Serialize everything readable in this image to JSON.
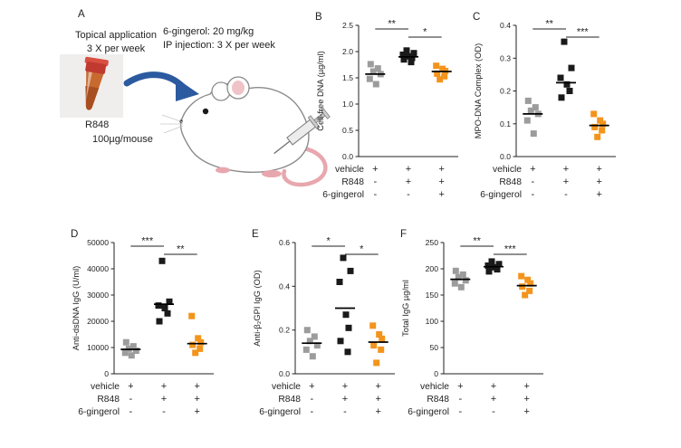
{
  "panel_a": {
    "label": "A",
    "topical_line1": "Topical application",
    "topical_line2": "3 X per week",
    "gingerol_line1": "6-gingerol: 20 mg/kg",
    "gingerol_line2": "IP injection: 3 X per week",
    "tube_label": "R848",
    "tube_dose": "100µg/mouse"
  },
  "treatments": {
    "rows": [
      {
        "label": "vehicle",
        "symbols": [
          "+",
          "+",
          "+"
        ]
      },
      {
        "label": "R848",
        "symbols": [
          "-",
          "+",
          "+"
        ]
      },
      {
        "label": "6-gingerol",
        "symbols": [
          "-",
          "-",
          "+"
        ]
      }
    ]
  },
  "colors": {
    "vehicle_marker": "#9c9c9c",
    "r848_marker": "#1a1a1a",
    "gingerol_marker": "#f3941c",
    "arrow_blue": "#2c5aa0",
    "mean_line": "#000000"
  },
  "chart_data": [
    {
      "panel": "B",
      "type": "scatter",
      "ylabel": "Cell-free DNA (µg/ml)",
      "ylim": [
        0,
        2.5
      ],
      "yticks": [
        "0.0",
        "0.5",
        "1.0",
        "1.5",
        "2.0",
        "2.5"
      ],
      "groups": [
        "vehicle",
        "R848",
        "R848 + 6-gingerol"
      ],
      "series": [
        {
          "name": "vehicle",
          "color": "#9c9c9c",
          "values": [
            1.76,
            1.68,
            1.62,
            1.57,
            1.48,
            1.38
          ],
          "mean": 1.57
        },
        {
          "name": "R848",
          "color": "#1a1a1a",
          "values": [
            2.02,
            1.97,
            1.94,
            1.91,
            1.88,
            1.85,
            1.8
          ],
          "mean": 1.9
        },
        {
          "name": "R848 + 6-gingerol",
          "color": "#f3941c",
          "values": [
            1.73,
            1.67,
            1.63,
            1.58,
            1.53,
            1.47
          ],
          "mean": 1.62
        }
      ],
      "significance": [
        {
          "groups": [
            0,
            1
          ],
          "label": "**"
        },
        {
          "groups": [
            1,
            2
          ],
          "label": "*"
        }
      ]
    },
    {
      "panel": "C",
      "type": "scatter",
      "ylabel": "MPO-DNA Complex (OD)",
      "ylim": [
        0,
        0.4
      ],
      "yticks": [
        "0.0",
        "0.1",
        "0.2",
        "0.3",
        "0.4"
      ],
      "groups": [
        "vehicle",
        "R848",
        "R848 + 6-gingerol"
      ],
      "series": [
        {
          "name": "vehicle",
          "color": "#9c9c9c",
          "values": [
            0.17,
            0.15,
            0.14,
            0.13,
            0.11,
            0.07
          ],
          "mean": 0.13
        },
        {
          "name": "R848",
          "color": "#1a1a1a",
          "values": [
            0.35,
            0.27,
            0.24,
            0.22,
            0.2,
            0.18
          ],
          "mean": 0.225
        },
        {
          "name": "R848 + 6-gingerol",
          "color": "#f3941c",
          "values": [
            0.13,
            0.11,
            0.1,
            0.09,
            0.08,
            0.06
          ],
          "mean": 0.095
        }
      ],
      "significance": [
        {
          "groups": [
            0,
            1
          ],
          "label": "**"
        },
        {
          "groups": [
            1,
            2
          ],
          "label": "***"
        }
      ]
    },
    {
      "panel": "D",
      "type": "scatter",
      "ylabel": "Anti-dsDNA IgG (U/ml)",
      "ylim": [
        0,
        50000
      ],
      "yticks": [
        "0",
        "10000",
        "20000",
        "30000",
        "40000",
        "50000"
      ],
      "groups": [
        "vehicle",
        "R848",
        "R848 + 6-gingerol"
      ],
      "series": [
        {
          "name": "vehicle",
          "color": "#9c9c9c",
          "values": [
            12000,
            10500,
            9500,
            8800,
            8000,
            7000
          ],
          "mean": 9300
        },
        {
          "name": "R848",
          "color": "#1a1a1a",
          "values": [
            43000,
            27500,
            26000,
            25000,
            23000,
            20000
          ],
          "mean": 26500
        },
        {
          "name": "R848 + 6-gingerol",
          "color": "#f3941c",
          "values": [
            22000,
            13500,
            12000,
            11000,
            9500,
            8000
          ],
          "mean": 11500
        }
      ],
      "significance": [
        {
          "groups": [
            0,
            1
          ],
          "label": "***"
        },
        {
          "groups": [
            1,
            2
          ],
          "label": "**"
        }
      ]
    },
    {
      "panel": "E",
      "type": "scatter",
      "ylabel": "Anti-β₂GPI IgG (OD)",
      "ylim": [
        0,
        0.6
      ],
      "yticks": [
        "0.0",
        "0.2",
        "0.4",
        "0.6"
      ],
      "groups": [
        "vehicle",
        "R848",
        "R848 + 6-gingerol"
      ],
      "series": [
        {
          "name": "vehicle",
          "color": "#9c9c9c",
          "values": [
            0.2,
            0.17,
            0.15,
            0.13,
            0.11,
            0.08
          ],
          "mean": 0.14
        },
        {
          "name": "R848",
          "color": "#1a1a1a",
          "values": [
            0.53,
            0.47,
            0.42,
            0.27,
            0.21,
            0.15,
            0.1
          ],
          "mean": 0.3
        },
        {
          "name": "R848 + 6-gingerol",
          "color": "#f3941c",
          "values": [
            0.22,
            0.18,
            0.16,
            0.13,
            0.11,
            0.05
          ],
          "mean": 0.145
        }
      ],
      "significance": [
        {
          "groups": [
            0,
            1
          ],
          "label": "*"
        },
        {
          "groups": [
            1,
            2
          ],
          "label": "*"
        }
      ]
    },
    {
      "panel": "F",
      "type": "scatter",
      "ylabel": "Total IgG µg/ml",
      "ylim": [
        0,
        250
      ],
      "yticks": [
        "0",
        "50",
        "100",
        "150",
        "200",
        "250"
      ],
      "groups": [
        "vehicle",
        "R848",
        "R848 + 6-gingerol"
      ],
      "series": [
        {
          "name": "vehicle",
          "color": "#9c9c9c",
          "values": [
            196,
            189,
            184,
            178,
            172,
            165
          ],
          "mean": 180
        },
        {
          "name": "R848",
          "color": "#1a1a1a",
          "values": [
            214,
            209,
            206,
            203,
            199,
            195
          ],
          "mean": 204
        },
        {
          "name": "R848 + 6-gingerol",
          "color": "#f3941c",
          "values": [
            186,
            179,
            172,
            166,
            158,
            150
          ],
          "mean": 168
        }
      ],
      "significance": [
        {
          "groups": [
            0,
            1
          ],
          "label": "**"
        },
        {
          "groups": [
            1,
            2
          ],
          "label": "***"
        }
      ]
    }
  ]
}
